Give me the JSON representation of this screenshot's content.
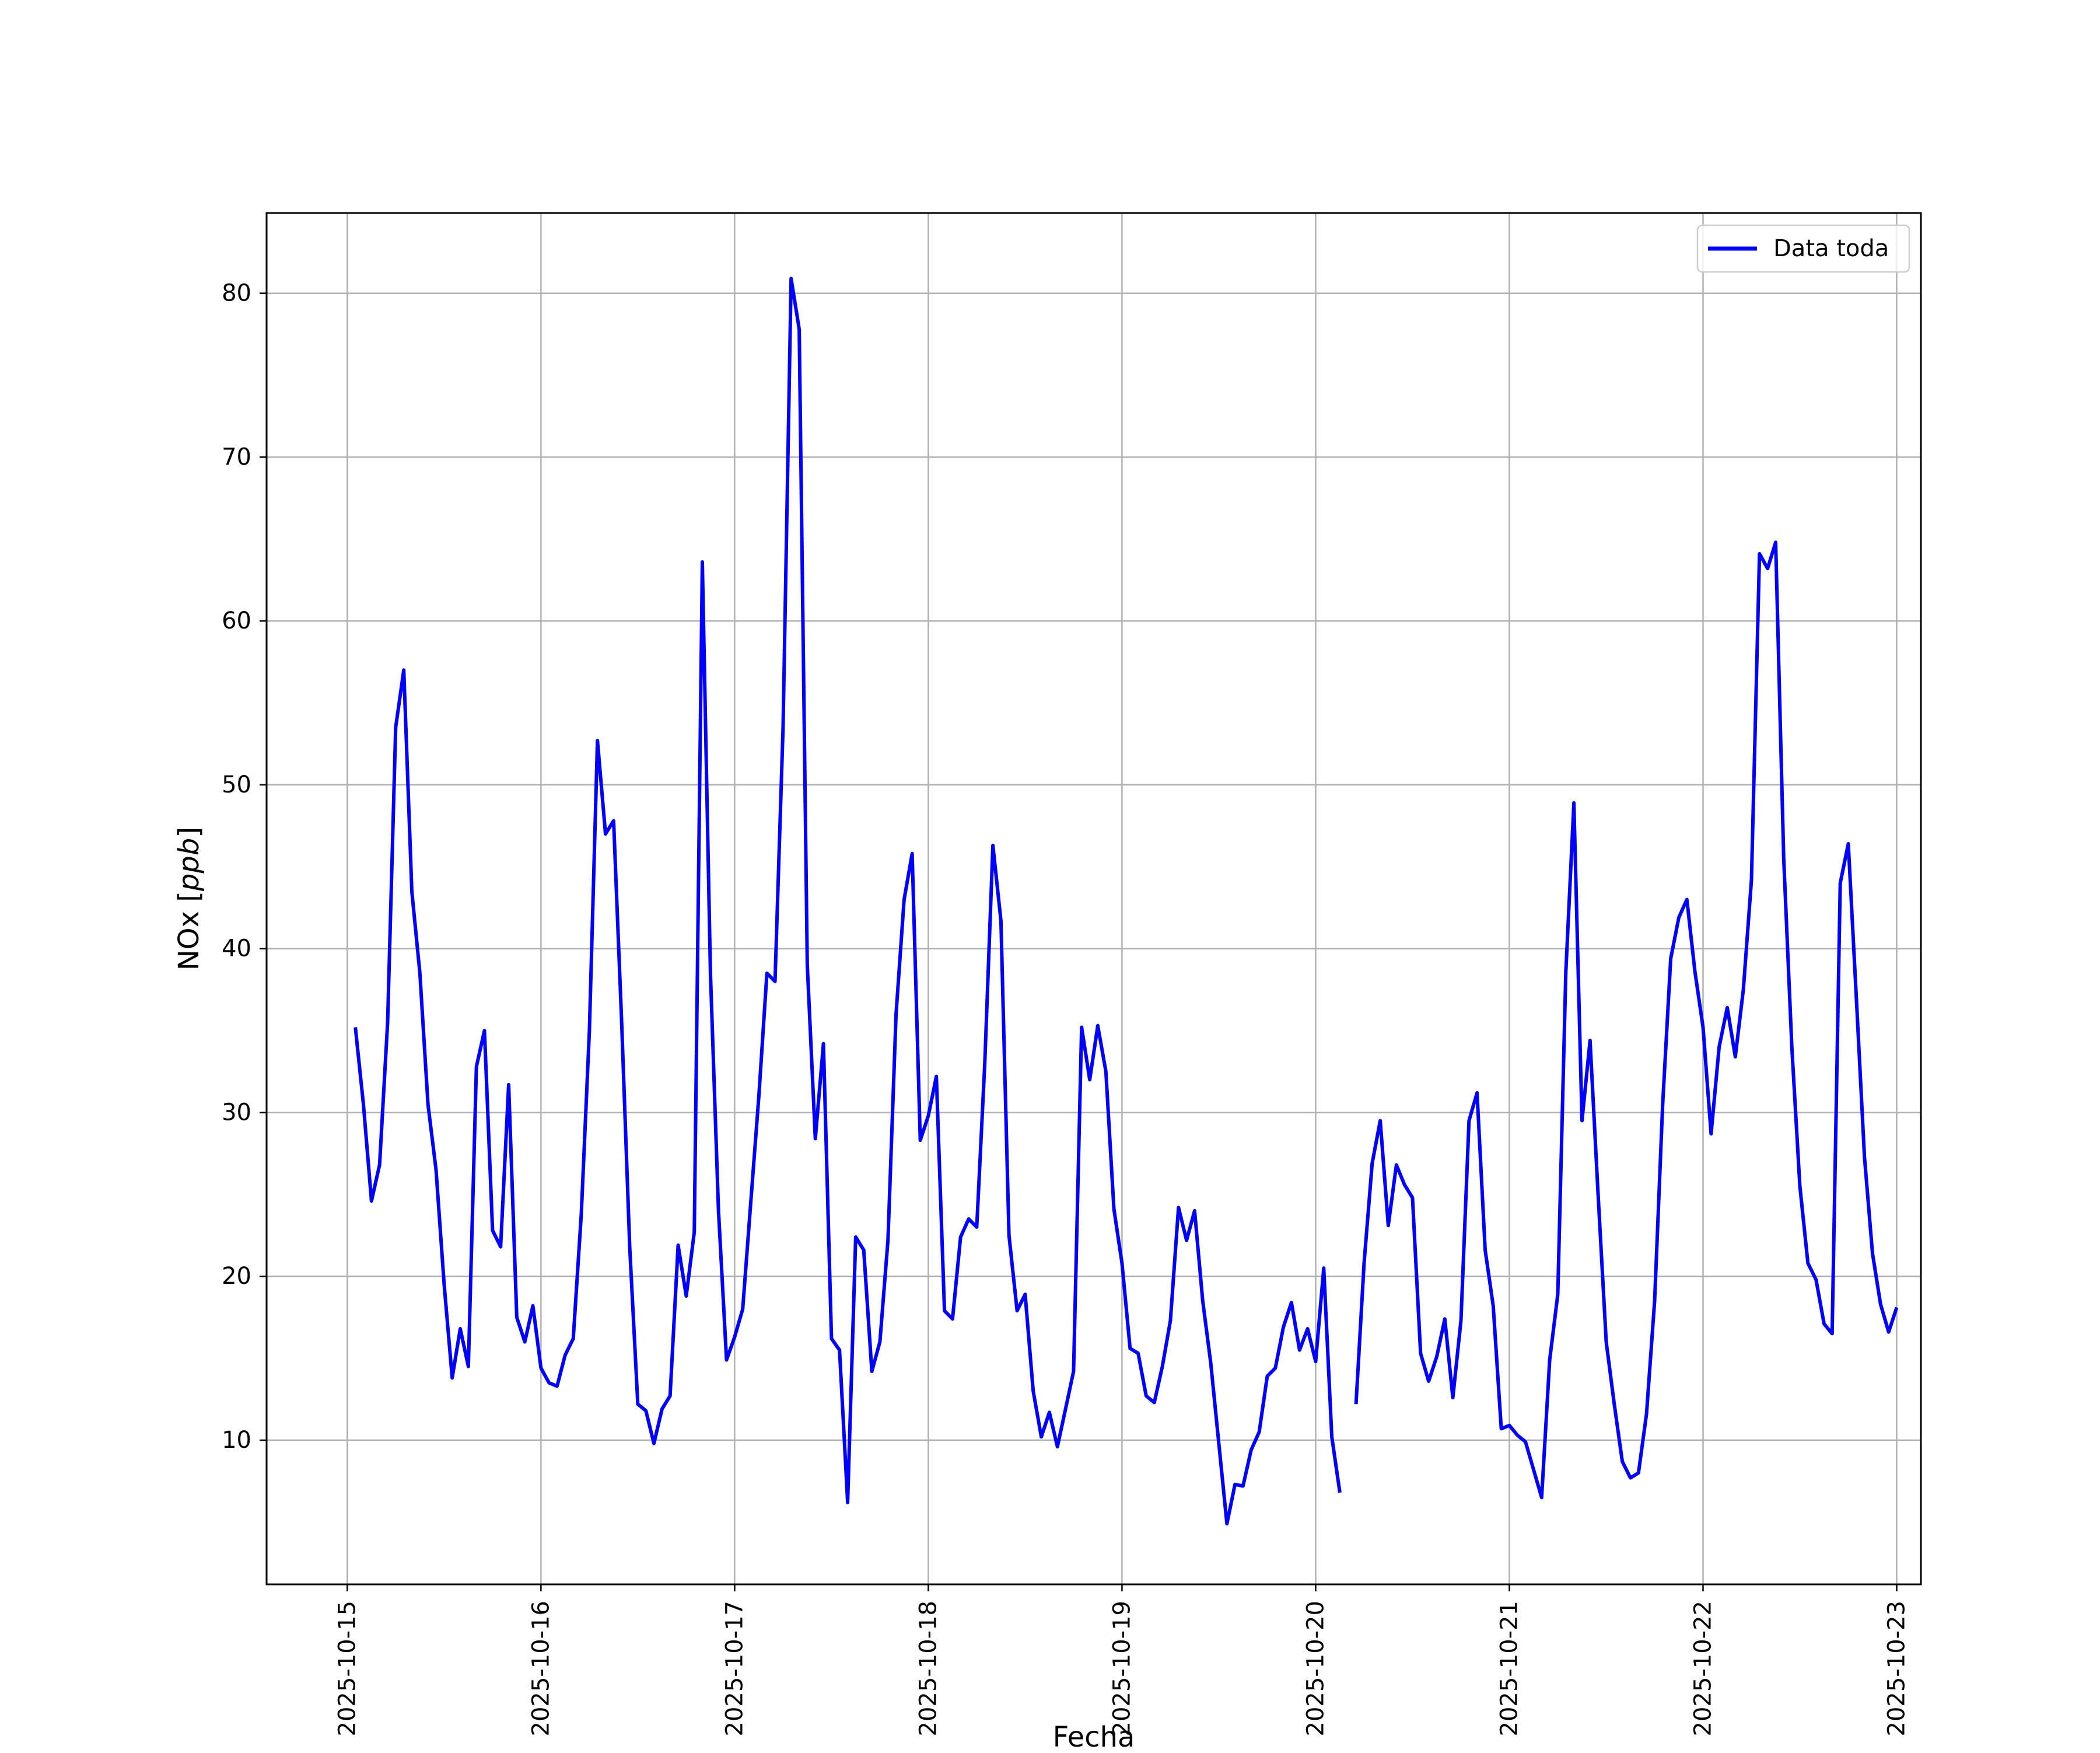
{
  "chart_data": {
    "type": "line",
    "xlabel": "Fecha",
    "ylabel": "NOx",
    "ylabel_unit": "ppb",
    "xlim": [
      "2025-10-14 14:00",
      "2025-10-23 03:00"
    ],
    "ylim": [
      1.2,
      84.9
    ],
    "x_ticks": [
      "2025-10-15",
      "2025-10-16",
      "2025-10-17",
      "2025-10-18",
      "2025-10-19",
      "2025-10-20",
      "2025-10-21",
      "2025-10-22",
      "2025-10-23"
    ],
    "y_ticks": [
      10,
      20,
      30,
      40,
      50,
      60,
      70,
      80
    ],
    "grid": true,
    "legend_position": "upper right",
    "series": [
      {
        "name": "Data toda",
        "color": "#0000ff",
        "x": [
          "2025-10-15 01:00",
          "2025-10-15 02:00",
          "2025-10-15 03:00",
          "2025-10-15 04:00",
          "2025-10-15 05:00",
          "2025-10-15 06:00",
          "2025-10-15 07:00",
          "2025-10-15 08:00",
          "2025-10-15 09:00",
          "2025-10-15 10:00",
          "2025-10-15 11:00",
          "2025-10-15 12:00",
          "2025-10-15 13:00",
          "2025-10-15 14:00",
          "2025-10-15 15:00",
          "2025-10-15 16:00",
          "2025-10-15 17:00",
          "2025-10-15 18:00",
          "2025-10-15 19:00",
          "2025-10-15 20:00",
          "2025-10-15 21:00",
          "2025-10-15 22:00",
          "2025-10-15 23:00",
          "2025-10-16 00:00",
          "2025-10-16 01:00",
          "2025-10-16 02:00",
          "2025-10-16 03:00",
          "2025-10-16 04:00",
          "2025-10-16 05:00",
          "2025-10-16 06:00",
          "2025-10-16 07:00",
          "2025-10-16 08:00",
          "2025-10-16 09:00",
          "2025-10-16 10:00",
          "2025-10-16 11:00",
          "2025-10-16 12:00",
          "2025-10-16 13:00",
          "2025-10-16 14:00",
          "2025-10-16 15:00",
          "2025-10-16 16:00",
          "2025-10-16 17:00",
          "2025-10-16 18:00",
          "2025-10-16 19:00",
          "2025-10-16 20:00",
          "2025-10-16 21:00",
          "2025-10-16 22:00",
          "2025-10-16 23:00",
          "2025-10-17 00:00",
          "2025-10-17 01:00",
          "2025-10-17 02:00",
          "2025-10-17 03:00",
          "2025-10-17 04:00",
          "2025-10-17 05:00",
          "2025-10-17 06:00",
          "2025-10-17 07:00",
          "2025-10-17 08:00",
          "2025-10-17 09:00",
          "2025-10-17 10:00",
          "2025-10-17 11:00",
          "2025-10-17 12:00",
          "2025-10-17 13:00",
          "2025-10-17 14:00",
          "2025-10-17 15:00",
          "2025-10-17 16:00",
          "2025-10-17 17:00",
          "2025-10-17 18:00",
          "2025-10-17 19:00",
          "2025-10-17 20:00",
          "2025-10-17 21:00",
          "2025-10-17 22:00",
          "2025-10-17 23:00",
          "2025-10-18 00:00",
          "2025-10-18 01:00",
          "2025-10-18 02:00",
          "2025-10-18 03:00",
          "2025-10-18 04:00",
          "2025-10-18 05:00",
          "2025-10-18 06:00",
          "2025-10-18 07:00",
          "2025-10-18 08:00",
          "2025-10-18 09:00",
          "2025-10-18 10:00",
          "2025-10-18 11:00",
          "2025-10-18 12:00",
          "2025-10-18 13:00",
          "2025-10-18 14:00",
          "2025-10-18 15:00",
          "2025-10-18 16:00",
          "2025-10-18 17:00",
          "2025-10-18 18:00",
          "2025-10-18 19:00",
          "2025-10-18 20:00",
          "2025-10-18 21:00",
          "2025-10-18 22:00",
          "2025-10-18 23:00",
          "2025-10-19 00:00",
          "2025-10-19 01:00",
          "2025-10-19 02:00",
          "2025-10-19 03:00",
          "2025-10-19 04:00",
          "2025-10-19 05:00",
          "2025-10-19 06:00",
          "2025-10-19 07:00",
          "2025-10-19 08:00",
          "2025-10-19 09:00",
          "2025-10-19 10:00",
          "2025-10-19 11:00",
          "2025-10-19 12:00",
          "2025-10-19 13:00",
          "2025-10-19 14:00",
          "2025-10-19 15:00",
          "2025-10-19 16:00",
          "2025-10-19 17:00",
          "2025-10-19 18:00",
          "2025-10-19 19:00",
          "2025-10-19 20:00",
          "2025-10-19 21:00",
          "2025-10-19 22:00",
          "2025-10-19 23:00",
          "2025-10-20 00:00",
          "2025-10-20 01:00",
          "2025-10-20 02:00",
          "2025-10-20 03:00",
          "2025-10-20 04:00",
          "2025-10-20 05:00",
          "2025-10-20 06:00",
          "2025-10-20 07:00",
          "2025-10-20 08:00",
          "2025-10-20 09:00",
          "2025-10-20 10:00",
          "2025-10-20 11:00",
          "2025-10-20 12:00",
          "2025-10-20 13:00",
          "2025-10-20 14:00",
          "2025-10-20 15:00",
          "2025-10-20 16:00",
          "2025-10-20 17:00",
          "2025-10-20 18:00",
          "2025-10-20 19:00",
          "2025-10-20 20:00",
          "2025-10-20 21:00",
          "2025-10-20 22:00",
          "2025-10-20 23:00",
          "2025-10-21 00:00",
          "2025-10-21 01:00",
          "2025-10-21 02:00",
          "2025-10-21 03:00",
          "2025-10-21 04:00",
          "2025-10-21 05:00",
          "2025-10-21 06:00",
          "2025-10-21 07:00",
          "2025-10-21 08:00",
          "2025-10-21 09:00",
          "2025-10-21 10:00",
          "2025-10-21 11:00",
          "2025-10-21 12:00",
          "2025-10-21 13:00",
          "2025-10-21 14:00",
          "2025-10-21 15:00",
          "2025-10-21 16:00",
          "2025-10-21 17:00",
          "2025-10-21 18:00",
          "2025-10-21 19:00",
          "2025-10-21 20:00",
          "2025-10-21 21:00",
          "2025-10-21 22:00",
          "2025-10-21 23:00",
          "2025-10-22 00:00",
          "2025-10-22 01:00",
          "2025-10-22 02:00",
          "2025-10-22 03:00",
          "2025-10-22 04:00",
          "2025-10-22 05:00",
          "2025-10-22 06:00",
          "2025-10-22 07:00",
          "2025-10-22 08:00",
          "2025-10-22 09:00",
          "2025-10-22 10:00",
          "2025-10-22 11:00",
          "2025-10-22 12:00",
          "2025-10-22 13:00",
          "2025-10-22 14:00",
          "2025-10-22 15:00",
          "2025-10-22 16:00",
          "2025-10-22 17:00",
          "2025-10-22 18:00",
          "2025-10-22 19:00",
          "2025-10-22 20:00",
          "2025-10-22 21:00",
          "2025-10-22 22:00",
          "2025-10-22 23:00",
          "2025-10-23 00:00"
        ],
        "y": [
          35.2,
          30.5,
          24.6,
          26.8,
          35.5,
          53.5,
          57.0,
          43.5,
          38.5,
          30.5,
          26.5,
          19.5,
          13.8,
          16.8,
          14.5,
          32.8,
          35.0,
          22.8,
          21.8,
          31.7,
          17.5,
          16.0,
          18.2,
          14.4,
          13.5,
          13.3,
          15.2,
          16.2,
          23.8,
          35.0,
          52.7,
          47.0,
          47.8,
          35.5,
          21.8,
          12.2,
          11.8,
          9.8,
          11.9,
          12.7,
          21.9,
          18.8,
          22.7,
          63.6,
          38.5,
          24.0,
          14.9,
          16.3,
          18.0,
          24.5,
          31.0,
          38.5,
          38.0,
          53.5,
          80.9,
          77.8,
          39.0,
          28.4,
          34.2,
          16.2,
          15.5,
          6.2,
          22.4,
          21.6,
          14.2,
          16.0,
          22.2,
          36.0,
          43.0,
          45.8,
          28.3,
          29.8,
          32.2,
          17.9,
          17.4,
          22.4,
          23.5,
          23.0,
          33.0,
          46.3,
          41.7,
          22.5,
          17.9,
          18.9,
          13.0,
          10.2,
          11.7,
          9.6,
          11.9,
          14.2,
          35.2,
          32.0,
          35.3,
          32.5,
          24.1,
          20.8,
          15.6,
          15.3,
          12.7,
          12.3,
          14.5,
          17.3,
          24.2,
          22.2,
          24.0,
          18.5,
          14.7,
          9.8,
          4.9,
          7.3,
          7.2,
          9.4,
          10.5,
          13.9,
          14.4,
          16.9,
          18.4,
          15.5,
          16.8,
          14.8,
          20.5,
          10.2,
          6.8,
          null,
          12.2,
          20.8,
          26.9,
          29.5,
          23.1,
          26.8,
          25.6,
          24.8,
          15.3,
          13.6,
          15.1,
          17.4,
          12.6,
          17.3,
          29.5,
          31.2,
          21.6,
          18.2,
          10.7,
          10.9,
          10.3,
          9.9,
          8.2,
          6.5,
          14.9,
          18.9,
          38.6,
          48.9,
          29.5,
          34.4,
          25.0,
          16.0,
          12.2,
          8.7,
          7.7,
          8.0,
          11.6,
          18.5,
          30.5,
          39.4,
          41.9,
          43.0,
          38.6,
          35.2,
          28.7,
          34.0,
          36.4,
          33.4,
          37.5,
          44.2,
          64.1,
          63.2,
          64.8,
          45.5,
          34.0,
          25.5,
          20.8,
          19.8,
          17.1,
          16.5,
          44.0,
          46.4,
          37.0,
          27.3,
          21.4,
          18.3,
          16.6,
          18.1
        ]
      }
    ]
  }
}
